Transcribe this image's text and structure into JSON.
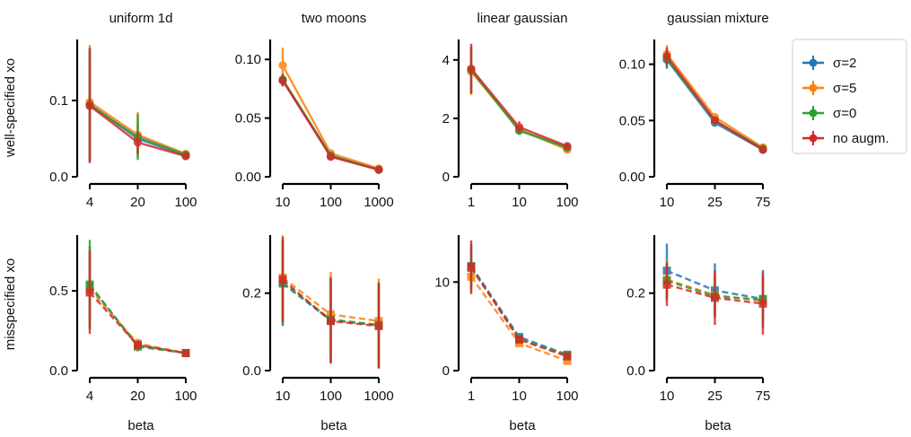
{
  "figure": {
    "column_titles": [
      "uniform 1d",
      "two moons",
      "linear gaussian",
      "gaussian mixture"
    ],
    "row_labels": [
      "well-specified xo",
      "misspecified xo"
    ],
    "xlabel": "beta"
  },
  "colors": {
    "sigma2": "#1f77b4",
    "sigma5": "#ff7f0e",
    "sigma0": "#2ca02c",
    "noaug": "#d62728"
  },
  "legend": [
    {
      "name": "σ=2",
      "color": "#1f77b4"
    },
    {
      "name": "σ=5",
      "color": "#ff7f0e"
    },
    {
      "name": "σ=0",
      "color": "#2ca02c"
    },
    {
      "name": "no augm.",
      "color": "#d62728"
    }
  ],
  "chart_data": [
    {
      "type": "line",
      "title": "uniform 1d",
      "ylabel": "well-specified xo",
      "xlabel": "",
      "categories": [
        "4",
        "20",
        "100"
      ],
      "ylim": [
        0,
        0.18
      ],
      "yticks": [
        "0.0",
        "0.1"
      ],
      "ytick_values": [
        0,
        0.1
      ],
      "line_style": "solid",
      "marker": "circle",
      "series": [
        {
          "name": "σ=2",
          "values": [
            0.095,
            0.05,
            0.028
          ],
          "err": [
            0.075,
            0.022,
            0.004
          ]
        },
        {
          "name": "σ=5",
          "values": [
            0.098,
            0.055,
            0.03
          ],
          "err": [
            0.075,
            0.03,
            0.004
          ]
        },
        {
          "name": "σ=0",
          "values": [
            0.094,
            0.052,
            0.029
          ],
          "err": [
            0.075,
            0.03,
            0.004
          ]
        },
        {
          "name": "no augm.",
          "values": [
            0.093,
            0.045,
            0.027
          ],
          "err": [
            0.075,
            0.014,
            0.004
          ]
        }
      ]
    },
    {
      "type": "line",
      "title": "two moons",
      "ylabel": "",
      "xlabel": "",
      "categories": [
        "10",
        "100",
        "1000"
      ],
      "ylim": [
        0,
        0.117
      ],
      "yticks": [
        "0.00",
        "0.05",
        "0.10"
      ],
      "ytick_values": [
        0,
        0.05,
        0.1
      ],
      "line_style": "solid",
      "marker": "circle",
      "series": [
        {
          "name": "σ=2",
          "values": [
            0.082,
            0.018,
            0.006
          ],
          "err": [
            0.005,
            0.002,
            0.001
          ]
        },
        {
          "name": "σ=5",
          "values": [
            0.095,
            0.02,
            0.007
          ],
          "err": [
            0.015,
            0.002,
            0.001
          ]
        },
        {
          "name": "σ=0",
          "values": [
            0.083,
            0.018,
            0.006
          ],
          "err": [
            0.005,
            0.002,
            0.001
          ]
        },
        {
          "name": "no augm.",
          "values": [
            0.082,
            0.017,
            0.006
          ],
          "err": [
            0.005,
            0.002,
            0.001
          ]
        }
      ]
    },
    {
      "type": "line",
      "title": "linear gaussian",
      "ylabel": "",
      "xlabel": "",
      "categories": [
        "1",
        "10",
        "100"
      ],
      "ylim": [
        0,
        4.7
      ],
      "yticks": [
        "0",
        "2",
        "4"
      ],
      "ytick_values": [
        0,
        2,
        4
      ],
      "line_style": "solid",
      "marker": "circle",
      "series": [
        {
          "name": "σ=2",
          "values": [
            3.65,
            1.6,
            1.0
          ],
          "err": [
            0.8,
            0.15,
            0.1
          ]
        },
        {
          "name": "σ=5",
          "values": [
            3.6,
            1.62,
            0.93
          ],
          "err": [
            0.8,
            0.15,
            0.1
          ]
        },
        {
          "name": "σ=0",
          "values": [
            3.65,
            1.58,
            1.0
          ],
          "err": [
            0.8,
            0.15,
            0.1
          ]
        },
        {
          "name": "no augm.",
          "values": [
            3.7,
            1.7,
            1.05
          ],
          "err": [
            0.85,
            0.2,
            0.12
          ]
        }
      ]
    },
    {
      "type": "line",
      "title": "gaussian mixture",
      "ylabel": "",
      "xlabel": "",
      "categories": [
        "10",
        "25",
        "75"
      ],
      "ylim": [
        0,
        0.122
      ],
      "yticks": [
        "0.00",
        "0.05",
        "0.10"
      ],
      "ytick_values": [
        0,
        0.05,
        0.1
      ],
      "line_style": "solid",
      "marker": "circle",
      "series": [
        {
          "name": "σ=2",
          "values": [
            0.104,
            0.048,
            0.024
          ],
          "err": [
            0.008,
            0.003,
            0.002
          ]
        },
        {
          "name": "σ=5",
          "values": [
            0.109,
            0.053,
            0.026
          ],
          "err": [
            0.008,
            0.003,
            0.002
          ]
        },
        {
          "name": "σ=0",
          "values": [
            0.105,
            0.05,
            0.025
          ],
          "err": [
            0.008,
            0.003,
            0.002
          ]
        },
        {
          "name": "no augm.",
          "values": [
            0.107,
            0.05,
            0.024
          ],
          "err": [
            0.008,
            0.003,
            0.002
          ]
        }
      ]
    },
    {
      "type": "line",
      "title": "",
      "ylabel": "misspecified xo",
      "xlabel": "beta",
      "categories": [
        "4",
        "20",
        "100"
      ],
      "ylim": [
        0,
        0.85
      ],
      "yticks": [
        "0.0",
        "0.5"
      ],
      "ytick_values": [
        0,
        0.5
      ],
      "line_style": "dashed",
      "marker": "square",
      "series": [
        {
          "name": "σ=2",
          "values": [
            0.53,
            0.16,
            0.11
          ],
          "err": [
            0.25,
            0.03,
            0.01
          ]
        },
        {
          "name": "σ=5",
          "values": [
            0.51,
            0.17,
            0.11
          ],
          "err": [
            0.25,
            0.03,
            0.01
          ]
        },
        {
          "name": "σ=0",
          "values": [
            0.54,
            0.15,
            0.11
          ],
          "err": [
            0.28,
            0.03,
            0.01
          ]
        },
        {
          "name": "no augm.",
          "values": [
            0.49,
            0.16,
            0.11
          ],
          "err": [
            0.26,
            0.03,
            0.01
          ]
        }
      ]
    },
    {
      "type": "line",
      "title": "",
      "ylabel": "",
      "xlabel": "beta",
      "categories": [
        "10",
        "100",
        "1000"
      ],
      "ylim": [
        0,
        0.35
      ],
      "yticks": [
        "0.0",
        "0.2"
      ],
      "ytick_values": [
        0,
        0.2
      ],
      "line_style": "dashed",
      "marker": "square",
      "series": [
        {
          "name": "σ=2",
          "values": [
            0.225,
            0.13,
            0.117
          ],
          "err": [
            0.11,
            0.11,
            0.11
          ]
        },
        {
          "name": "σ=5",
          "values": [
            0.24,
            0.145,
            0.128
          ],
          "err": [
            0.11,
            0.11,
            0.11
          ]
        },
        {
          "name": "σ=0",
          "values": [
            0.228,
            0.132,
            0.118
          ],
          "err": [
            0.11,
            0.11,
            0.11
          ]
        },
        {
          "name": "no augm.",
          "values": [
            0.235,
            0.128,
            0.115
          ],
          "err": [
            0.11,
            0.11,
            0.11
          ]
        }
      ]
    },
    {
      "type": "line",
      "title": "",
      "ylabel": "",
      "xlabel": "beta",
      "categories": [
        "1",
        "10",
        "100"
      ],
      "ylim": [
        0,
        15.3
      ],
      "yticks": [
        "0",
        "10"
      ],
      "ytick_values": [
        0,
        10
      ],
      "line_style": "dashed",
      "marker": "square",
      "series": [
        {
          "name": "σ=2",
          "values": [
            11.8,
            3.8,
            1.8
          ],
          "err": [
            2.5,
            0.4,
            0.2
          ]
        },
        {
          "name": "σ=5",
          "values": [
            10.6,
            3.1,
            1.1
          ],
          "err": [
            2.0,
            0.4,
            0.2
          ]
        },
        {
          "name": "σ=0",
          "values": [
            11.6,
            3.6,
            1.7
          ],
          "err": [
            2.5,
            0.4,
            0.2
          ]
        },
        {
          "name": "no augm.",
          "values": [
            11.7,
            3.5,
            1.6
          ],
          "err": [
            3.0,
            0.4,
            0.2
          ]
        }
      ]
    },
    {
      "type": "line",
      "title": "",
      "ylabel": "",
      "xlabel": "beta",
      "categories": [
        "10",
        "25",
        "75"
      ],
      "ylim": [
        0,
        0.35
      ],
      "yticks": [
        "0.0",
        "0.2"
      ],
      "ytick_values": [
        0,
        0.2
      ],
      "line_style": "dashed",
      "marker": "square",
      "series": [
        {
          "name": "σ=2",
          "values": [
            0.258,
            0.207,
            0.185
          ],
          "err": [
            0.07,
            0.07,
            0.075
          ]
        },
        {
          "name": "σ=5",
          "values": [
            0.235,
            0.195,
            0.18
          ],
          "err": [
            0.05,
            0.05,
            0.06
          ]
        },
        {
          "name": "σ=0",
          "values": [
            0.232,
            0.192,
            0.183
          ],
          "err": [
            0.05,
            0.05,
            0.06
          ]
        },
        {
          "name": "no augm.",
          "values": [
            0.222,
            0.188,
            0.173
          ],
          "err": [
            0.055,
            0.07,
            0.08
          ]
        }
      ]
    }
  ]
}
